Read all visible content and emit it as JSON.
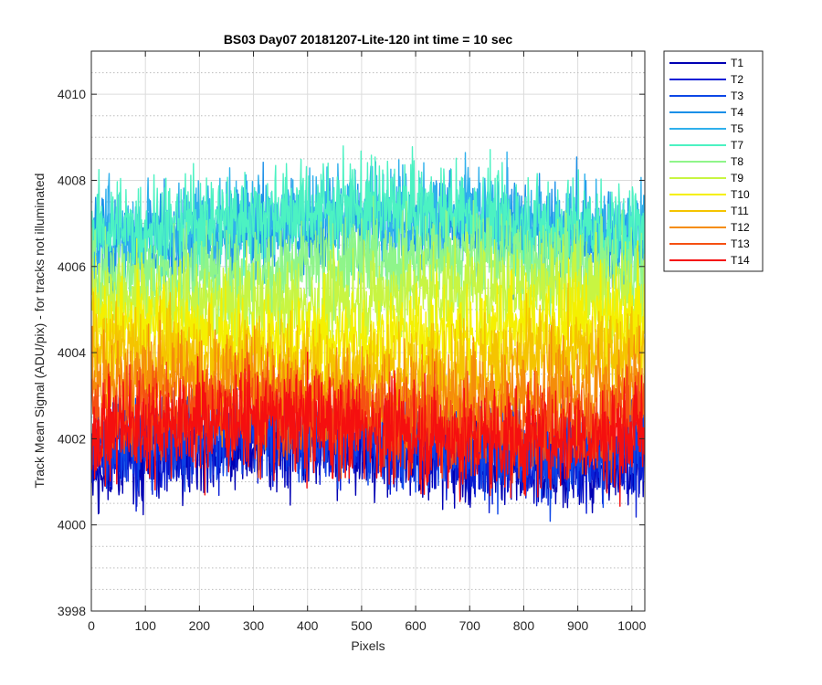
{
  "chart_data": {
    "type": "line",
    "title": "BS03 Day07 20181207-Lite-120 int time = 10 sec",
    "xlabel": "Pixels",
    "ylabel": "Track Mean Signal (ADU/pix) - for tracks not illuminated",
    "xlim": [
      0,
      1024
    ],
    "ylim": [
      3998,
      4011
    ],
    "xticks": [
      0,
      100,
      200,
      300,
      400,
      500,
      600,
      700,
      800,
      900,
      1000
    ],
    "yticks": [
      3998,
      4000,
      4002,
      4004,
      4006,
      4008,
      4010
    ],
    "grid": true,
    "legend_position": "outside-top-right",
    "x": {
      "start": 1,
      "end": 1024,
      "step": 1
    },
    "series": [
      {
        "name": "T1",
        "color": "#0000b3",
        "mean": 4001.6,
        "spread": 0.9
      },
      {
        "name": "T2",
        "color": "#0a1fd6",
        "mean": 4001.8,
        "spread": 0.9
      },
      {
        "name": "T3",
        "color": "#0d47e6",
        "mean": 4002.0,
        "spread": 0.95
      },
      {
        "name": "T4",
        "color": "#1a8fe8",
        "mean": 4006.8,
        "spread": 1.0
      },
      {
        "name": "T5",
        "color": "#2fb0ec",
        "mean": 4007.0,
        "spread": 1.0
      },
      {
        "name": "T7",
        "color": "#4cf2c2",
        "mean": 4007.1,
        "spread": 1.0
      },
      {
        "name": "T8",
        "color": "#8ff58a",
        "mean": 4006.0,
        "spread": 1.0
      },
      {
        "name": "T9",
        "color": "#c8f542",
        "mean": 4005.3,
        "spread": 1.0
      },
      {
        "name": "T10",
        "color": "#f5f000",
        "mean": 4004.5,
        "spread": 1.0
      },
      {
        "name": "T11",
        "color": "#f5c400",
        "mean": 4003.8,
        "spread": 1.0
      },
      {
        "name": "T12",
        "color": "#f58d0a",
        "mean": 4003.1,
        "spread": 1.0
      },
      {
        "name": "T13",
        "color": "#f55012",
        "mean": 4002.5,
        "spread": 1.0
      },
      {
        "name": "T14",
        "color": "#f50f0f",
        "mean": 4002.2,
        "spread": 1.05
      }
    ]
  }
}
